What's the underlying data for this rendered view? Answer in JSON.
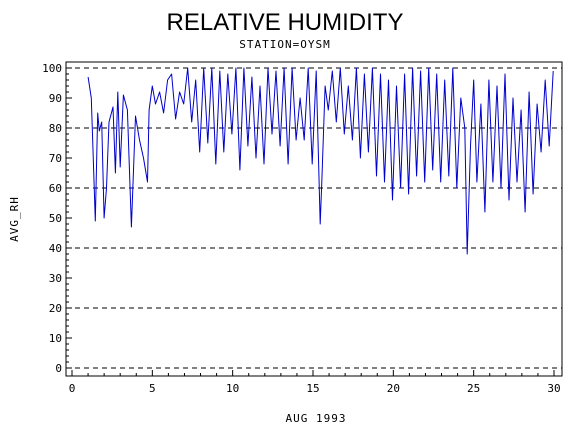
{
  "chart_data": {
    "type": "line",
    "title": "RELATIVE HUMIDITY",
    "subtitle": "STATION=OYSM",
    "xlabel": "AUG 1993",
    "ylabel": "AVG_RH",
    "xlim": [
      0,
      30
    ],
    "ylim": [
      0,
      100
    ],
    "x_ticks": [
      "0",
      "5",
      "10",
      "15",
      "20",
      "25",
      "30"
    ],
    "y_ticks": [
      "0",
      "10",
      "20",
      "30",
      "40",
      "50",
      "60",
      "70",
      "80",
      "90",
      "100"
    ],
    "reference_lines": [
      0,
      20,
      40,
      60,
      80,
      100
    ],
    "line_color": "#0000cc",
    "series": [
      {
        "x": [
          1.0,
          1.2,
          1.45,
          1.6,
          1.7,
          1.85,
          2.0,
          2.15,
          2.3,
          2.55,
          2.7,
          2.85,
          3.0,
          3.2,
          3.45,
          3.7,
          3.95,
          4.2,
          4.45,
          4.7,
          4.8,
          5.0,
          5.2,
          5.45,
          5.7,
          5.95,
          6.2,
          6.45,
          6.7,
          6.95,
          7.2,
          7.45,
          7.7,
          7.95,
          8.2,
          8.45,
          8.7,
          8.95,
          9.2,
          9.45,
          9.7,
          9.95,
          10.2,
          10.45,
          10.7,
          10.95,
          11.2,
          11.45,
          11.7,
          11.95,
          12.2,
          12.45,
          12.7,
          12.95,
          13.2,
          13.45,
          13.7,
          13.95,
          14.2,
          14.45,
          14.7,
          14.95,
          15.2,
          15.45,
          15.55,
          15.75,
          15.95,
          16.2,
          16.45,
          16.7,
          16.95,
          17.2,
          17.45,
          17.7,
          17.95,
          18.2,
          18.45,
          18.7,
          18.95,
          19.2,
          19.45,
          19.7,
          19.95,
          20.2,
          20.45,
          20.7,
          20.95,
          21.2,
          21.45,
          21.7,
          21.95,
          22.2,
          22.45,
          22.7,
          22.95,
          23.2,
          23.45,
          23.7,
          23.95,
          24.2,
          24.45,
          24.6,
          24.8,
          25.0,
          25.2,
          25.45,
          25.7,
          25.95,
          26.2,
          26.45,
          26.7,
          26.95,
          27.2,
          27.45,
          27.7,
          27.95,
          28.2,
          28.45,
          28.7,
          28.95,
          29.2,
          29.45,
          29.7,
          29.95
        ],
        "values": [
          97,
          90,
          49,
          85,
          79,
          82,
          50,
          60,
          82,
          87,
          65,
          92,
          67,
          91,
          86,
          47,
          84,
          76,
          70,
          62,
          86,
          94,
          88,
          92,
          85,
          96,
          98,
          83,
          92,
          88,
          100,
          82,
          96,
          72,
          100,
          75,
          100,
          68,
          99,
          72,
          98,
          78,
          100,
          66,
          100,
          74,
          97,
          70,
          94,
          68,
          100,
          78,
          99,
          74,
          100,
          68,
          100,
          76,
          90,
          76,
          100,
          68,
          99,
          48,
          62,
          94,
          86,
          99,
          82,
          100,
          78,
          94,
          76,
          100,
          70,
          98,
          72,
          100,
          64,
          98,
          62,
          96,
          56,
          94,
          60,
          98,
          58,
          100,
          64,
          99,
          62,
          100,
          66,
          98,
          62,
          96,
          64,
          100,
          60,
          90,
          80,
          38,
          74,
          96,
          62,
          88,
          52,
          96,
          62,
          94,
          60,
          98,
          56,
          90,
          62,
          86,
          52,
          92,
          58,
          88,
          72,
          96,
          74,
          99
        ]
      }
    ]
  }
}
